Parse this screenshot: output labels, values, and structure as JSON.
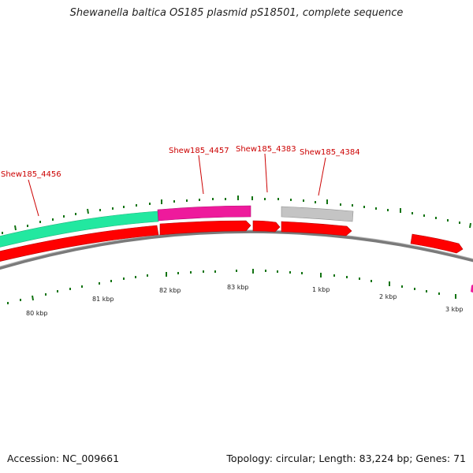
{
  "title": "Shewanella baltica OS185 plasmid pS18501, complete sequence",
  "footer": {
    "accession": "Accession: NC_009661",
    "summary": "Topology: circular; Length: 83,224 bp; Genes: 71"
  },
  "colors": {
    "backbone": "#8a8a8a",
    "forward_green": "#22e8a0",
    "forward_magenta": "#ee1a9c",
    "forward_gray": "#c4c4c4",
    "reverse_red": "#ff0000",
    "label_red": "#cc0000",
    "tick_green": "#127312"
  },
  "gene_labels": [
    {
      "text": "Shew185_4456"
    },
    {
      "text": "Shew185_4457"
    },
    {
      "text": "Shew185_4383"
    },
    {
      "text": "Shew185_4384"
    }
  ],
  "kbp_labels": [
    {
      "text": "80 kbp"
    },
    {
      "text": "81 kbp"
    },
    {
      "text": "82 kbp"
    },
    {
      "text": "83 kbp"
    },
    {
      "text": "1 kbp"
    },
    {
      "text": "2 kbp"
    },
    {
      "text": "3 kbp"
    }
  ]
}
